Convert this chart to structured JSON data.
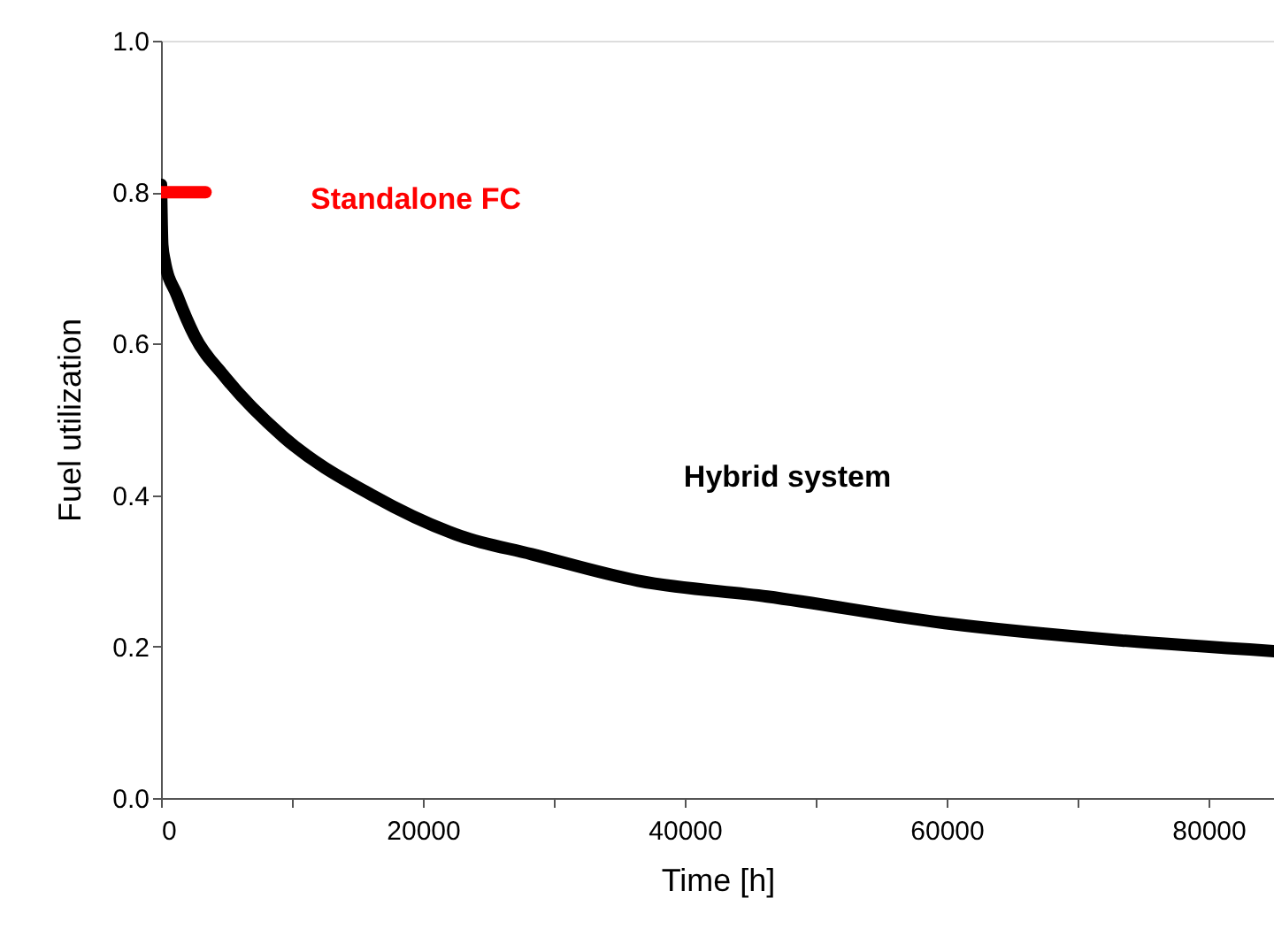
{
  "chart_data": {
    "type": "line",
    "xlabel": "Time [h]",
    "ylabel": "Fuel utilization",
    "xlim": [
      0,
      85000
    ],
    "ylim": [
      0,
      1
    ],
    "xticks": [
      0,
      {
        "value": 10000,
        "label": null
      },
      20000,
      {
        "value": 30000,
        "label": null
      },
      40000,
      {
        "value": 50000,
        "label": null
      },
      60000,
      {
        "value": 70000,
        "label": null
      },
      80000
    ],
    "yticks": [
      {
        "value": 0,
        "label": "0.0"
      },
      {
        "value": 0.2,
        "label": "0.2"
      },
      {
        "value": 0.4,
        "label": "0.4"
      },
      {
        "value": 0.6,
        "label": "0.6"
      },
      {
        "value": 0.8,
        "label": "0.8"
      },
      {
        "value": 1,
        "label": "1.0"
      }
    ],
    "grid": false,
    "marker": "none",
    "line_style": "solid",
    "series": [
      {
        "color": "#000000",
        "x": [
          0,
          100,
          270,
          1220,
          2570,
          4880,
          9340,
          16110,
          22880,
          28300,
          36420,
          46300,
          59850,
          73400,
          85000
        ],
        "values": [
          0.81,
          0.73,
          0.71,
          0.664,
          0.61,
          0.556,
          0.477,
          0.4,
          0.346,
          0.322,
          0.287,
          0.266,
          0.231,
          0.208,
          0.194
        ]
      },
      {
        "color": "#ff0000",
        "x": [
          0,
          3400
        ],
        "values": [
          0.8,
          0.8
        ]
      }
    ],
    "annotations": [
      "Hybrid system",
      "Standalone FC"
    ]
  }
}
